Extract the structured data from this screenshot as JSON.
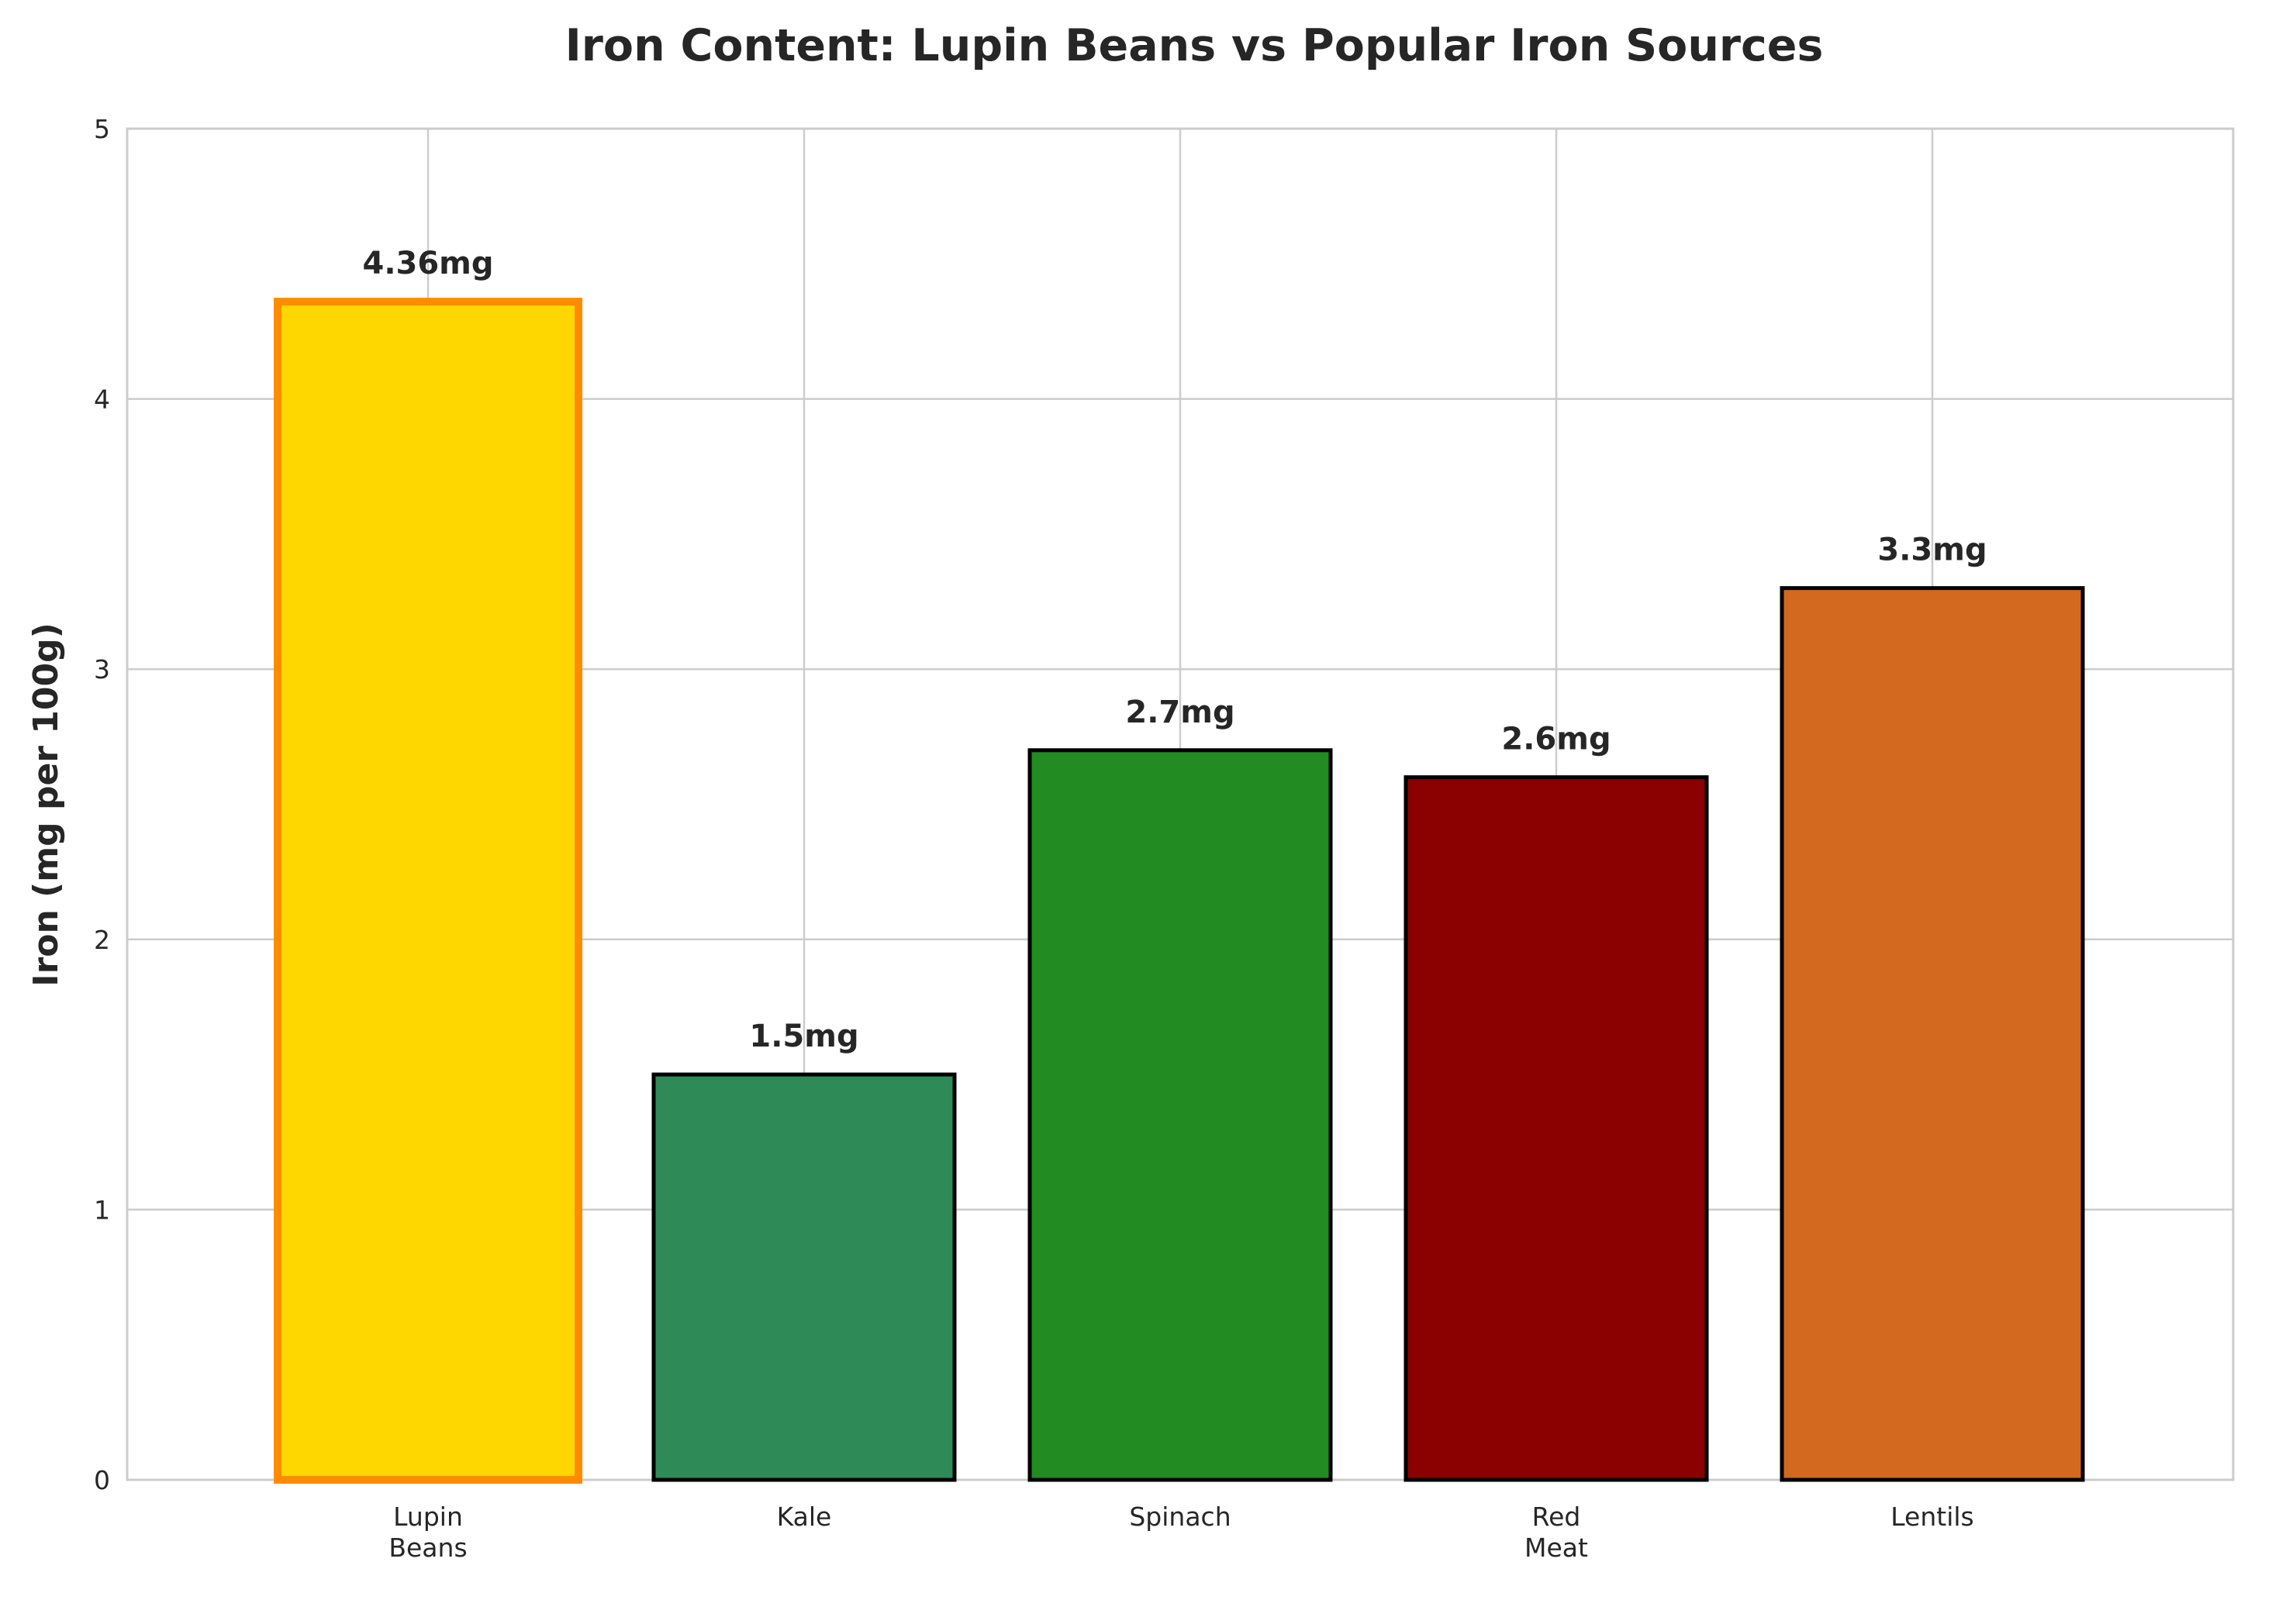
{
  "chart_data": {
    "type": "bar",
    "title": "Iron Content: Lupin Beans vs Popular Iron Sources",
    "xlabel": "",
    "ylabel": "Iron (mg per 100g)",
    "ylim": [
      0,
      5
    ],
    "yticks": [
      "0",
      "1",
      "2",
      "3",
      "4",
      "5"
    ],
    "grid": true,
    "categories": [
      "Lupin\nBeans",
      "Kale",
      "Spinach",
      "Red\nMeat",
      "Lentils"
    ],
    "values": [
      4.36,
      1.5,
      2.7,
      2.6,
      3.3
    ],
    "value_labels": [
      "4.36mg",
      "1.5mg",
      "2.7mg",
      "2.6mg",
      "3.3mg"
    ],
    "colors": [
      "#FFD700",
      "#2E8B57",
      "#228B22",
      "#8B0000",
      "#D2691E"
    ],
    "edge_colors": [
      "#FF8C00",
      "#000000",
      "#000000",
      "#000000",
      "#000000"
    ]
  }
}
